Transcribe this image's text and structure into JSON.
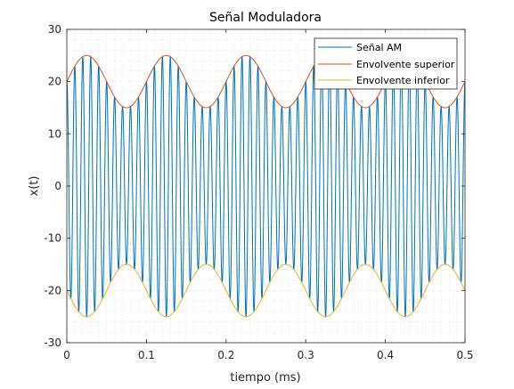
{
  "chart_data": {
    "type": "line",
    "title": "Señal Moduladora",
    "xlabel": "tiempo (ms)",
    "ylabel": "x(t)",
    "xlim": [
      0,
      0.5
    ],
    "ylim": [
      -30,
      30
    ],
    "xticks": [
      0,
      0.1,
      0.2,
      0.3,
      0.4,
      0.5
    ],
    "xtick_labels": [
      "0",
      "0.1",
      "0.2",
      "0.3",
      "0.4",
      "0.5"
    ],
    "yticks": [
      -30,
      -20,
      -10,
      0,
      10,
      20,
      30
    ],
    "ytick_labels": [
      "-30",
      "-20",
      "-10",
      "0",
      "10",
      "20",
      "30"
    ],
    "grid": "minor dotted",
    "legend_position": "top-right",
    "series": [
      {
        "name": "Señal AM",
        "color": "#0072BD",
        "carrier_amplitude": 20,
        "modulation_amplitude": 5,
        "modulating_frequency_khz": 10,
        "carrier_frequency_khz": 100
      },
      {
        "name": "Envolvente superior",
        "color": "#D95319",
        "x": [
          0,
          0.025,
          0.075,
          0.125,
          0.175,
          0.225,
          0.275,
          0.325,
          0.375,
          0.425,
          0.475,
          0.5
        ],
        "y": [
          20,
          25,
          15,
          25,
          15,
          25,
          15,
          25,
          15,
          25,
          15,
          20
        ]
      },
      {
        "name": "Envolvente inferior",
        "color": "#EDB120",
        "x": [
          0,
          0.025,
          0.075,
          0.125,
          0.175,
          0.225,
          0.275,
          0.325,
          0.375,
          0.425,
          0.475,
          0.5
        ],
        "y": [
          -20,
          -25,
          -15,
          -25,
          -15,
          -25,
          -15,
          -25,
          -15,
          -25,
          -15,
          -20
        ]
      }
    ]
  }
}
